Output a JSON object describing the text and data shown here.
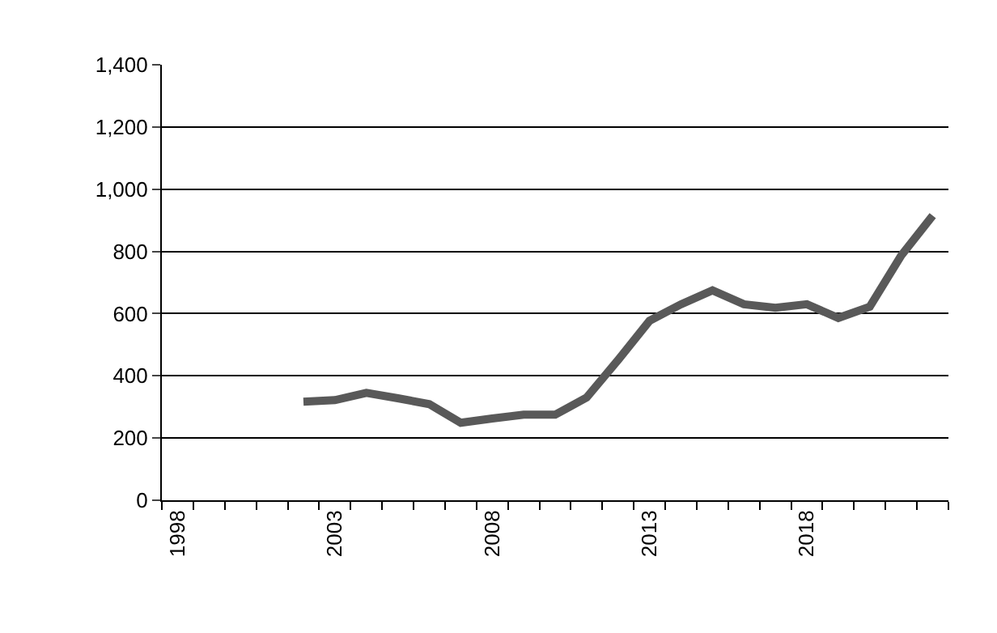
{
  "chart_data": {
    "type": "line",
    "categories": [
      "1998",
      null,
      null,
      null,
      null,
      "2003",
      null,
      null,
      null,
      null,
      "2008",
      null,
      null,
      null,
      null,
      "2013",
      null,
      null,
      null,
      null,
      "2018",
      null,
      null,
      null,
      null
    ],
    "series": [
      {
        "color": "#595959",
        "values": [
          null,
          null,
          null,
          null,
          317,
          322,
          345,
          328,
          309,
          249,
          263,
          275,
          275,
          330,
          451,
          577,
          630,
          675,
          630,
          619,
          630,
          586,
          622,
          787,
          915
        ]
      }
    ],
    "ylim": [
      0,
      1400
    ],
    "yticks": [
      0,
      200,
      400,
      600,
      800,
      {
        "value": 1000,
        "label": "1,000"
      },
      {
        "value": 1200,
        "label": "1,200"
      },
      {
        "value": 1400,
        "label": "1,400"
      }
    ],
    "grid": "y",
    "marker": "none",
    "line_style": "solid"
  }
}
